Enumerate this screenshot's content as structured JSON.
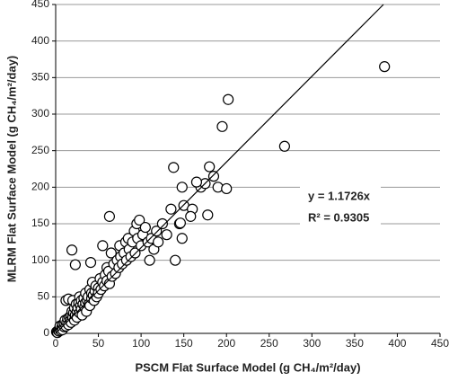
{
  "chart_data": {
    "type": "scatter",
    "xlabel": "PSCM Flat Surface Model (g CH₄/m²/day)",
    "ylabel": "MLRM  Flat Surface Model (g CH₄/m²/day)",
    "annotations": [
      "y = 1.1726x",
      "R² = 0.9305"
    ],
    "trendline_slope": 1.1726,
    "xlim": [
      0,
      450
    ],
    "ylim": [
      0,
      450
    ],
    "xticks": [
      0,
      50,
      100,
      150,
      200,
      250,
      300,
      350,
      400,
      450
    ],
    "yticks": [
      0,
      50,
      100,
      150,
      200,
      250,
      300,
      350,
      400,
      450
    ],
    "grid": true,
    "marker_color": "#000000",
    "line_color": "#000000",
    "x": [
      1,
      2,
      3,
      4,
      5,
      5,
      6,
      7,
      8,
      8,
      10,
      10,
      11,
      12,
      12,
      13,
      14,
      15,
      15,
      16,
      17,
      18,
      18,
      19,
      20,
      20,
      21,
      22,
      22,
      23,
      24,
      25,
      25,
      26,
      27,
      28,
      28,
      29,
      30,
      30,
      31,
      32,
      33,
      34,
      35,
      35,
      36,
      37,
      38,
      39,
      40,
      40,
      42,
      42,
      43,
      44,
      45,
      46,
      47,
      48,
      50,
      50,
      52,
      53,
      55,
      55,
      57,
      58,
      60,
      60,
      62,
      63,
      65,
      66,
      68,
      70,
      72,
      74,
      75,
      76,
      78,
      80,
      82,
      83,
      85,
      86,
      88,
      90,
      92,
      93,
      95,
      96,
      98,
      100,
      102,
      105,
      108,
      110,
      112,
      115,
      118,
      120,
      125,
      130,
      135,
      140,
      145,
      150,
      160,
      170,
      175,
      190,
      385,
      202,
      195,
      268,
      200,
      180,
      185,
      165,
      148,
      178,
      158,
      138,
      63,
      19,
      23,
      41,
      148,
      146
    ],
    "values": [
      2,
      1,
      4,
      3,
      6,
      10,
      4,
      8,
      12,
      5,
      9,
      14,
      18,
      10,
      45,
      15,
      20,
      12,
      47,
      22,
      18,
      25,
      15,
      30,
      22,
      45,
      28,
      35,
      18,
      25,
      40,
      30,
      22,
      35,
      42,
      28,
      50,
      38,
      33,
      45,
      25,
      40,
      48,
      36,
      42,
      55,
      30,
      45,
      50,
      40,
      60,
      38,
      48,
      55,
      70,
      52,
      45,
      58,
      65,
      50,
      62,
      55,
      75,
      60,
      70,
      120,
      65,
      80,
      72,
      90,
      85,
      68,
      110,
      78,
      95,
      82,
      100,
      90,
      120,
      105,
      95,
      110,
      125,
      100,
      130,
      115,
      105,
      125,
      140,
      110,
      150,
      130,
      155,
      120,
      135,
      145,
      125,
      100,
      130,
      115,
      140,
      125,
      150,
      135,
      170,
      100,
      150,
      175,
      170,
      200,
      205,
      200,
      365,
      320,
      283,
      256,
      198,
      228,
      215,
      207,
      200,
      162,
      160,
      227,
      160,
      114,
      94,
      97,
      130,
      151
    ]
  }
}
